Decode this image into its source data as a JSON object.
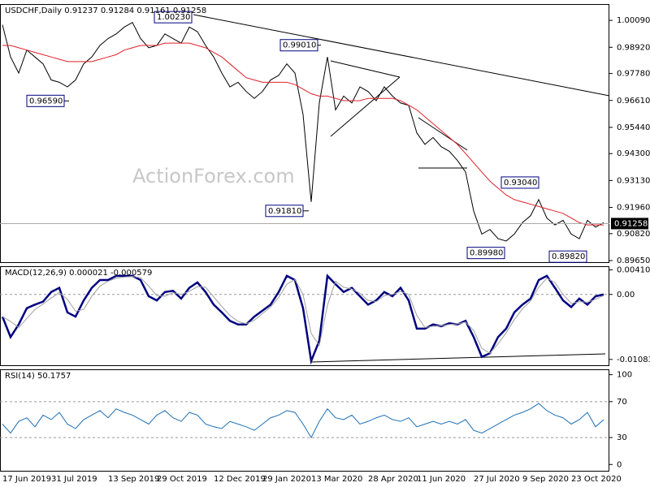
{
  "chart_data": [
    {
      "type": "line",
      "title": "USDCHF,Daily  0.91237 0.91284 0.91161 0.91258",
      "watermark": "ActionForex.com",
      "ylim": [
        0.8958,
        1.008
      ],
      "yticks": [
        {
          "value": 1.0009,
          "label": "1.00090"
        },
        {
          "value": 0.9892,
          "label": "0.98920"
        },
        {
          "value": 0.9778,
          "label": "0.97780"
        },
        {
          "value": 0.9661,
          "label": "0.96610"
        },
        {
          "value": 0.9544,
          "label": "0.95440"
        },
        {
          "value": 0.943,
          "label": "0.94300"
        },
        {
          "value": 0.9313,
          "label": "0.93130"
        },
        {
          "value": 0.9196,
          "label": "0.91960"
        },
        {
          "value": 0.9082,
          "label": "0.90820"
        },
        {
          "value": 0.8965,
          "label": "0.89650"
        }
      ],
      "last": 0.91258,
      "annotations": [
        {
          "value": 1.0023,
          "label": "1.00230"
        },
        {
          "value": 0.9901,
          "label": "0.99010"
        },
        {
          "value": 0.9659,
          "label": "0.96590"
        },
        {
          "value": 0.9181,
          "label": "0.91810"
        },
        {
          "value": 0.9304,
          "label": "0.93040"
        },
        {
          "value": 0.8998,
          "label": "0.89980"
        },
        {
          "value": 0.8982,
          "label": "0.89820"
        }
      ],
      "series": [
        {
          "color": "#000000",
          "values": [
            0.999,
            0.985,
            0.978,
            0.988,
            0.985,
            0.982,
            0.975,
            0.974,
            0.972,
            0.975,
            0.982,
            0.985,
            0.99,
            0.993,
            0.995,
            0.998,
            1.0,
            0.993,
            0.989,
            0.99,
            0.995,
            0.993,
            0.991,
            0.998,
            0.996,
            0.99,
            0.985,
            0.978,
            0.972,
            0.974,
            0.97,
            0.967,
            0.97,
            0.975,
            0.977,
            0.982,
            0.978,
            0.96,
            0.922,
            0.965,
            0.985,
            0.962,
            0.968,
            0.965,
            0.972,
            0.97,
            0.966,
            0.972,
            0.968,
            0.965,
            0.964,
            0.952,
            0.947,
            0.95,
            0.946,
            0.944,
            0.94,
            0.935,
            0.918,
            0.908,
            0.91,
            0.906,
            0.905,
            0.908,
            0.913,
            0.916,
            0.923,
            0.915,
            0.912,
            0.914,
            0.908,
            0.906,
            0.914,
            0.911,
            0.913
          ]
        },
        {
          "color": "#e0202a",
          "values": [
            0.99,
            0.99,
            0.989,
            0.988,
            0.987,
            0.986,
            0.985,
            0.984,
            0.983,
            0.983,
            0.983,
            0.983,
            0.984,
            0.985,
            0.986,
            0.988,
            0.989,
            0.99,
            0.99,
            0.99,
            0.991,
            0.991,
            0.991,
            0.991,
            0.99,
            0.989,
            0.987,
            0.985,
            0.982,
            0.979,
            0.976,
            0.975,
            0.974,
            0.974,
            0.974,
            0.974,
            0.973,
            0.971,
            0.969,
            0.968,
            0.968,
            0.967,
            0.966,
            0.966,
            0.966,
            0.967,
            0.967,
            0.967,
            0.967,
            0.966,
            0.964,
            0.962,
            0.959,
            0.956,
            0.953,
            0.95,
            0.947,
            0.943,
            0.939,
            0.935,
            0.931,
            0.928,
            0.925,
            0.923,
            0.922,
            0.921,
            0.92,
            0.919,
            0.918,
            0.917,
            0.915,
            0.913,
            0.912,
            0.912,
            0.912
          ]
        }
      ]
    },
    {
      "type": "line",
      "title": "MACD(12,26,9) 0.000021 -0.000579",
      "ylim": [
        -0.0118,
        0.0047
      ],
      "yticks": [
        0.004101,
        {
          "value": 0,
          "label": "0.00"
        },
        -0.010833
      ],
      "series": [
        {
          "color": "#000080",
          "width": 2.5,
          "values": [
            -0.0037,
            -0.0071,
            -0.005,
            -0.0023,
            -0.0017,
            -0.0012,
            0.0004,
            0.0011,
            -0.003,
            -0.0037,
            -0.001,
            0.0011,
            0.0024,
            0.0024,
            0.0031,
            0.0031,
            0.0031,
            0.0024,
            -0.0003,
            -0.001,
            0.0004,
            0.0006,
            -0.0007,
            0.0011,
            0.002,
            0.0004,
            -0.0017,
            -0.003,
            -0.0044,
            -0.005,
            -0.005,
            -0.0037,
            -0.0027,
            -0.0017,
            0.0004,
            0.0031,
            0.0024,
            -0.0023,
            -0.0111,
            -0.0077,
            0.0031,
            0.0017,
            0.0004,
            0.0011,
            -0.0003,
            -0.0017,
            -0.001,
            0.0004,
            -0.0003,
            0.0011,
            -0.001,
            -0.0057,
            -0.0057,
            -0.005,
            -0.0053,
            -0.0048,
            -0.005,
            -0.0044,
            -0.0071,
            -0.0104,
            -0.0098,
            -0.0071,
            -0.0057,
            -0.003,
            -0.0017,
            -0.0007,
            0.0024,
            0.0031,
            0.0011,
            -0.001,
            -0.0021,
            -0.0007,
            -0.0017,
            -0.0003,
            0.0
          ]
        },
        {
          "color": "#a0a0a0",
          "width": 1,
          "values": [
            -0.0037,
            -0.0045,
            -0.0055,
            -0.004,
            -0.0025,
            -0.0016,
            -0.0006,
            0.0003,
            -0.0008,
            -0.0028,
            -0.0025,
            -0.0003,
            0.0014,
            0.0022,
            0.0027,
            0.0029,
            0.003,
            0.0028,
            0.0014,
            -0.0002,
            -0.0003,
            0.0003,
            0.0,
            0.0005,
            0.0013,
            0.0012,
            -0.0004,
            -0.002,
            -0.0035,
            -0.0045,
            -0.0049,
            -0.0043,
            -0.0032,
            -0.0021,
            -0.0005,
            0.0017,
            0.0025,
            0.0,
            -0.0065,
            -0.0085,
            -0.0018,
            0.0022,
            0.0012,
            0.0009,
            0.0002,
            -0.001,
            -0.0012,
            -0.0002,
            0.0,
            0.0005,
            0.0,
            -0.0035,
            -0.0055,
            -0.0053,
            -0.0052,
            -0.005,
            -0.0049,
            -0.0046,
            -0.006,
            -0.009,
            -0.0098,
            -0.0082,
            -0.0064,
            -0.0042,
            -0.0024,
            -0.0011,
            0.0012,
            0.0027,
            0.002,
            0.0,
            -0.0015,
            -0.0012,
            -0.0013,
            -0.0008,
            -0.0002
          ]
        }
      ]
    },
    {
      "type": "line",
      "title": "RSI(14) 50.1757",
      "ylim": [
        -7,
        106
      ],
      "yticks": [
        100,
        70,
        30,
        0
      ],
      "categories": [
        "17 Jun 2019",
        null,
        null,
        null,
        null,
        null,
        "31 Jul 2019",
        null,
        null,
        null,
        null,
        null,
        null,
        "13 Sep 2019",
        null,
        null,
        null,
        null,
        null,
        "29 Oct 2019",
        null,
        null,
        null,
        null,
        null,
        null,
        "12 Dec 2019",
        null,
        null,
        null,
        null,
        null,
        "29 Jan 2020",
        null,
        null,
        null,
        null,
        null,
        "13 Mar 2020",
        null,
        null,
        null,
        null,
        null,
        null,
        "28 Apr 2020",
        null,
        null,
        null,
        null,
        null,
        "11 Jun 2020",
        null,
        null,
        null,
        null,
        null,
        null,
        "27 Jul 2020",
        null,
        null,
        null,
        null,
        null,
        "9 Sep 2020",
        null,
        null,
        null,
        null,
        null,
        "23 Oct 2020",
        null,
        null,
        null,
        null
      ],
      "series": [
        {
          "color": "#1e6fb4",
          "width": 1,
          "values": [
            45,
            35,
            48,
            52,
            42,
            55,
            50,
            58,
            45,
            40,
            50,
            55,
            60,
            52,
            62,
            58,
            55,
            50,
            45,
            55,
            60,
            52,
            48,
            58,
            55,
            45,
            42,
            40,
            48,
            45,
            42,
            38,
            45,
            52,
            55,
            60,
            58,
            45,
            30,
            48,
            62,
            52,
            50,
            55,
            45,
            48,
            52,
            55,
            50,
            48,
            52,
            42,
            45,
            48,
            45,
            48,
            45,
            50,
            38,
            35,
            40,
            45,
            50,
            55,
            58,
            62,
            68,
            60,
            55,
            52,
            45,
            50,
            58,
            42,
            50
          ]
        }
      ]
    }
  ]
}
